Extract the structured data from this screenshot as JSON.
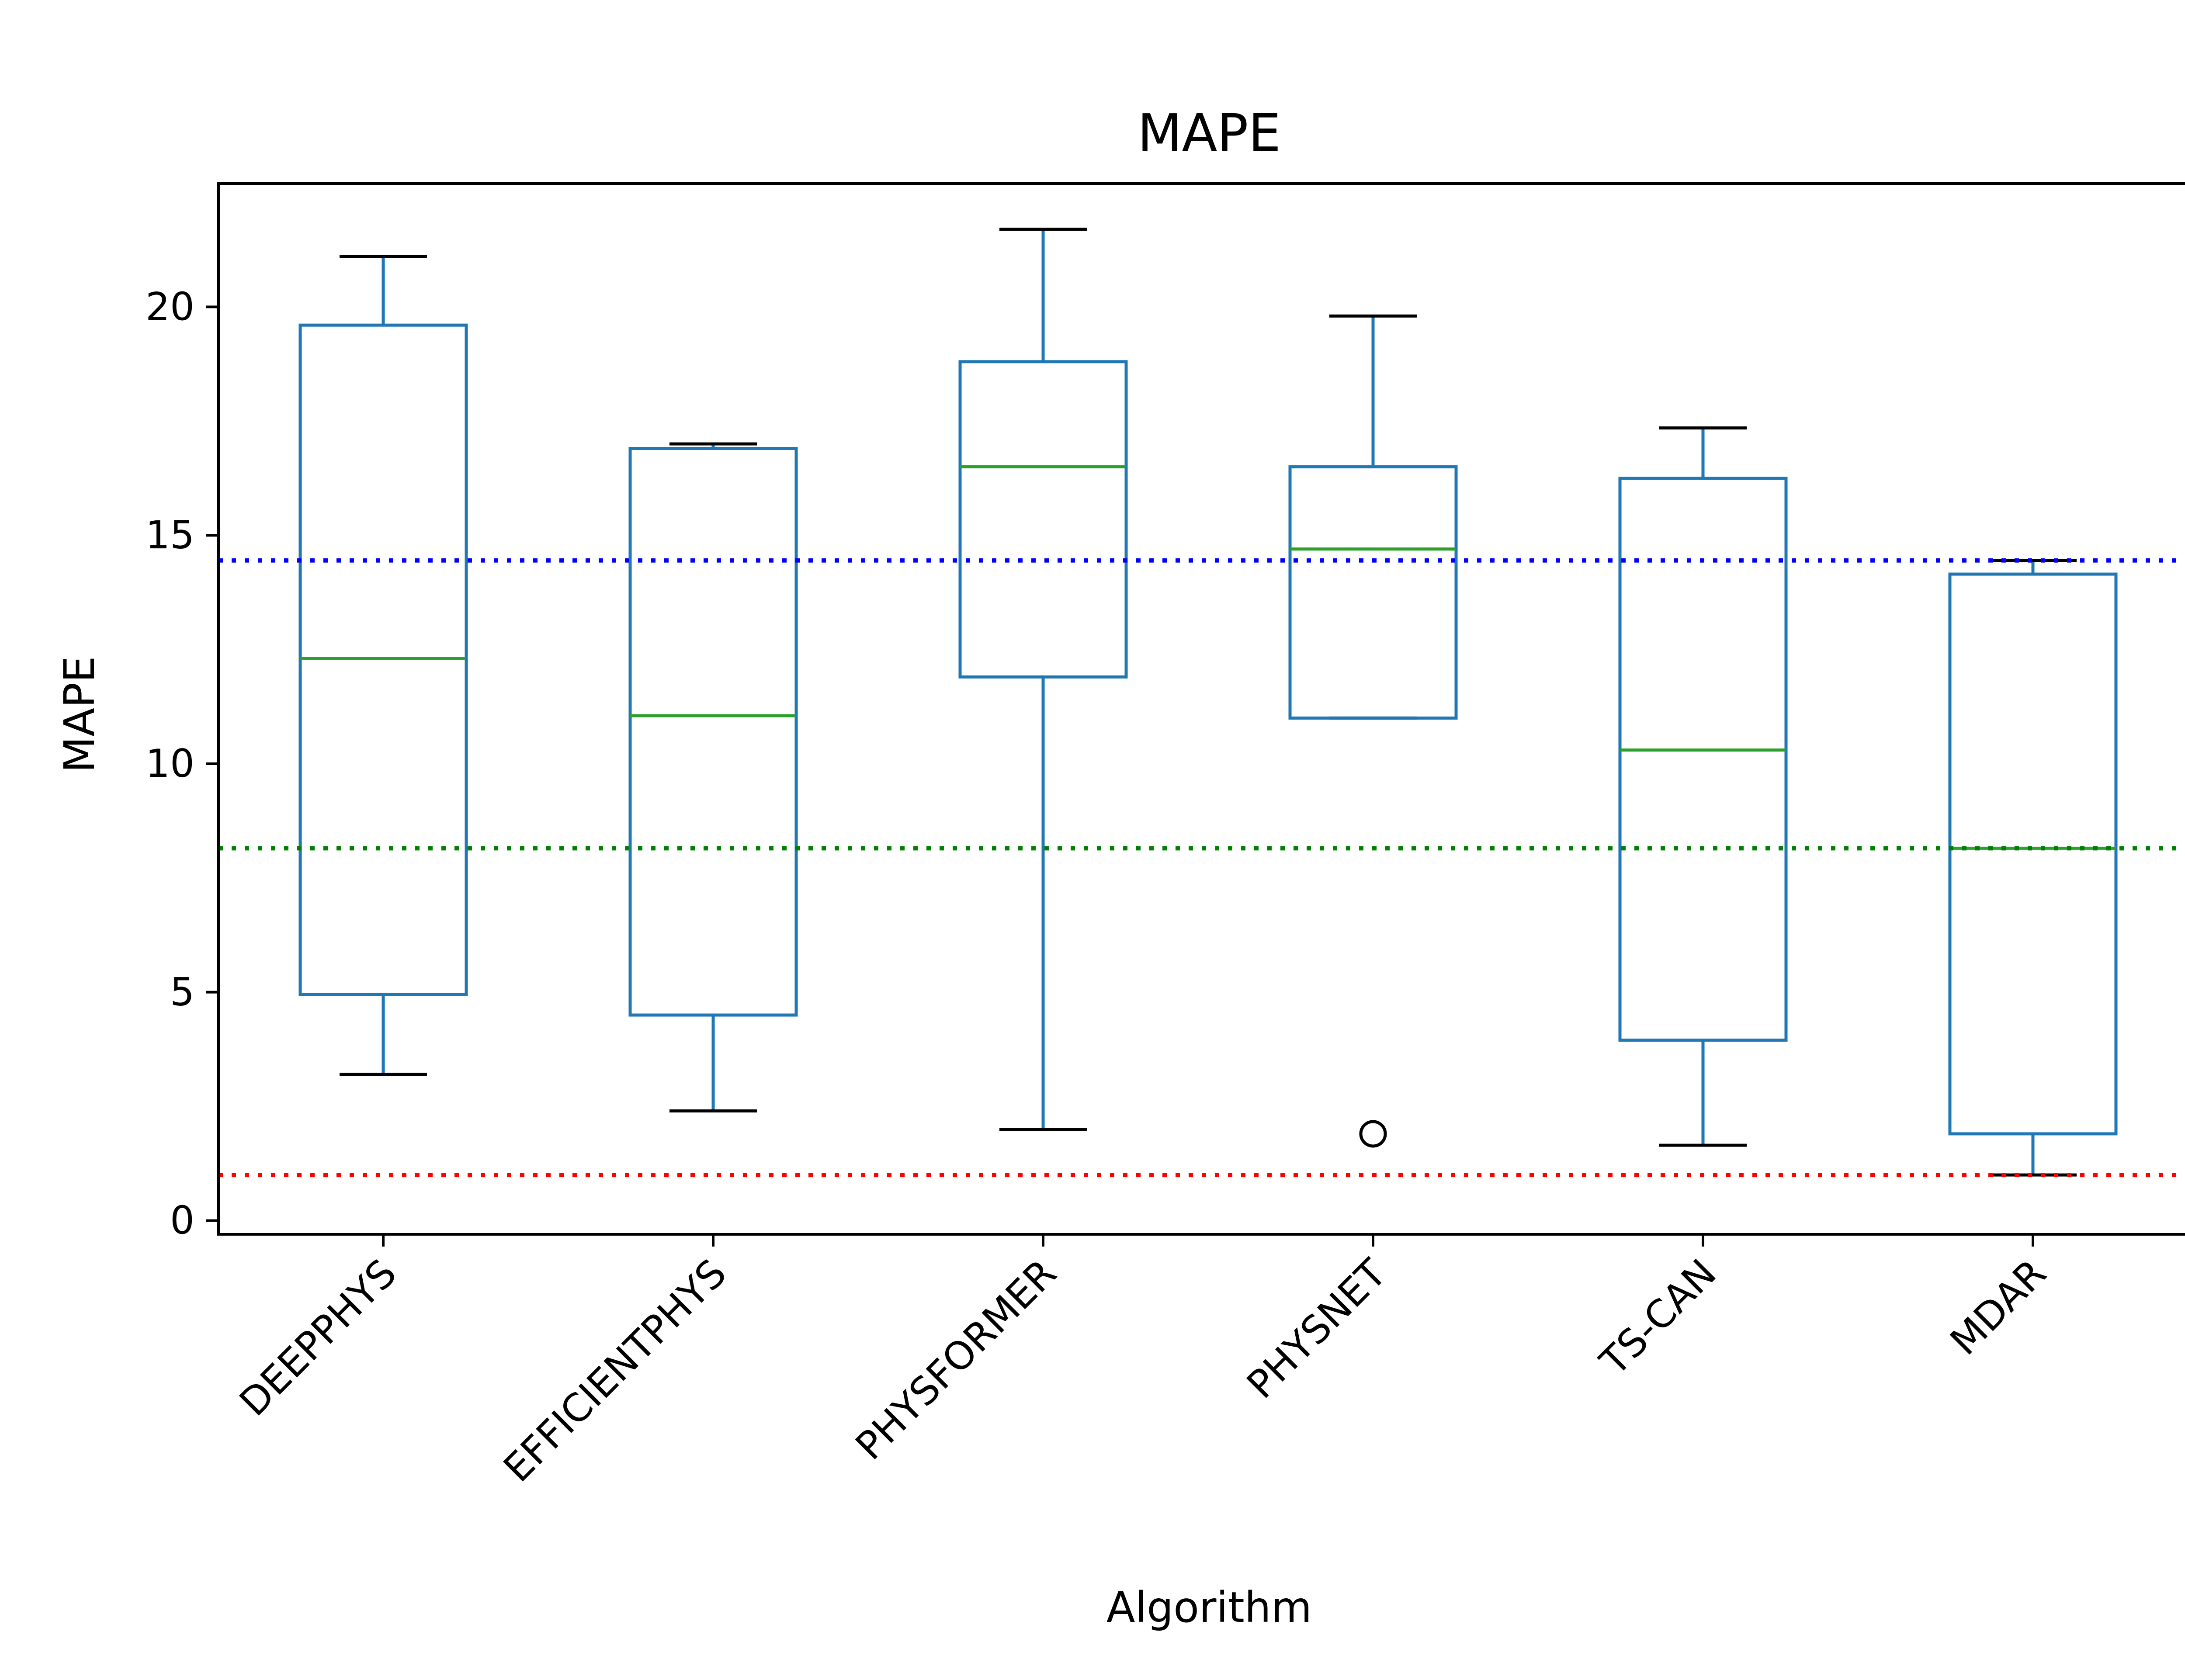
{
  "chart_data": {
    "type": "box",
    "title": "MAPE",
    "xlabel": "Algorithm",
    "ylabel": "MAPE",
    "ylim": [
      -0.3,
      22.7
    ],
    "yticks": [
      0,
      5,
      10,
      15,
      20
    ],
    "categories": [
      "DEEPPHYS",
      "EFFICIENTPHYS",
      "PHYSFORMER",
      "PHYSNET",
      "TS-CAN",
      "MDAR"
    ],
    "boxes": [
      {
        "label": "DEEPPHYS",
        "whisker_low": 3.2,
        "q1": 4.95,
        "median": 12.3,
        "q3": 19.6,
        "whisker_high": 21.1,
        "outliers": []
      },
      {
        "label": "EFFICIENTPHYS",
        "whisker_low": 2.4,
        "q1": 4.5,
        "median": 11.05,
        "q3": 16.9,
        "whisker_high": 17.0,
        "outliers": []
      },
      {
        "label": "PHYSFORMER",
        "whisker_low": 2.0,
        "q1": 11.9,
        "median": 16.5,
        "q3": 18.8,
        "whisker_high": 21.7,
        "outliers": []
      },
      {
        "label": "PHYSNET",
        "whisker_low": 11.0,
        "q1": 11.0,
        "median": 14.7,
        "q3": 16.5,
        "whisker_high": 19.8,
        "outliers": [
          1.9
        ]
      },
      {
        "label": "TS-CAN",
        "whisker_low": 1.65,
        "q1": 3.95,
        "median": 10.3,
        "q3": 16.25,
        "whisker_high": 17.35,
        "outliers": []
      },
      {
        "label": "MDAR",
        "whisker_low": 1.0,
        "q1": 1.9,
        "median": 8.15,
        "q3": 14.15,
        "whisker_high": 14.45,
        "outliers": []
      }
    ],
    "reference_lines": [
      {
        "value": 14.45,
        "color": "#0000ff",
        "style": "dotted"
      },
      {
        "value": 8.15,
        "color": "#008000",
        "style": "dotted"
      },
      {
        "value": 1.0,
        "color": "#ff0000",
        "style": "dotted"
      }
    ],
    "grid": false,
    "colors": {
      "box": "#1f77b4",
      "median": "#2ca02c",
      "cap": "#000000",
      "outlier": "#000000"
    }
  }
}
